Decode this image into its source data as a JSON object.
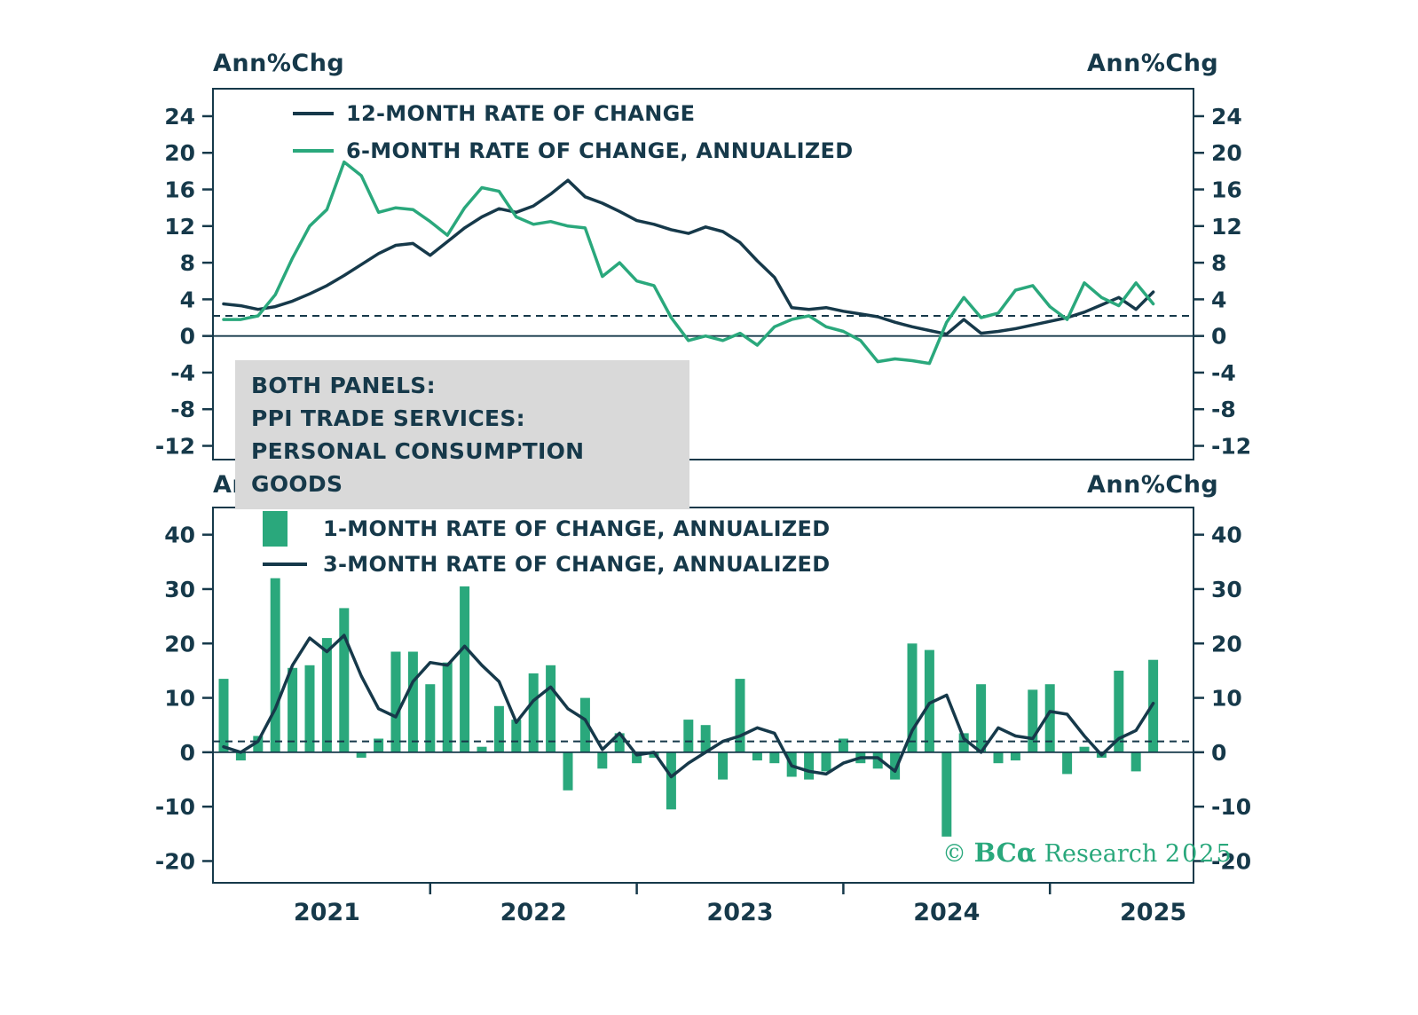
{
  "colors": {
    "navy": "#16394a",
    "green": "#2aa87c",
    "note_box_bg": "#d9d9d9",
    "background": "#ffffff"
  },
  "top_panel": {
    "axis_title_left": "Ann%Chg",
    "axis_title_right": "Ann%Chg",
    "legend": [
      {
        "label": "12-MONTH RATE OF CHANGE",
        "swatch": "navy"
      },
      {
        "label": "6-MONTH RATE OF CHANGE, ANNUALIZED",
        "swatch": "green"
      }
    ],
    "note_lines": [
      "BOTH PANELS:",
      "PPI TRADE SERVICES:",
      "PERSONAL CONSUMPTION GOODS"
    ]
  },
  "bottom_panel": {
    "axis_title_left": "Ann%Chg",
    "axis_title_right": "Ann%Chg",
    "legend": [
      {
        "label": "1-MONTH RATE OF CHANGE, ANNUALIZED",
        "swatch": "green"
      },
      {
        "label": "3-MONTH RATE OF CHANGE, ANNUALIZED",
        "swatch": "navy"
      }
    ]
  },
  "watermark": {
    "prefix": "©",
    "brand": "BCα",
    "name": "Research",
    "year": "2025"
  },
  "chart_data": [
    {
      "type": "line",
      "panel": "top",
      "title": "PPI Trade Services: Personal Consumption Goods",
      "ylabel_left": "Ann%Chg",
      "ylabel_right": "Ann%Chg",
      "ylim": [
        -13.5,
        27
      ],
      "yticks": [
        -12,
        -8,
        -4,
        0,
        4,
        8,
        12,
        16,
        20,
        24
      ],
      "reference_dashed_y": 2.2,
      "zero_line": true,
      "grid": false,
      "x_start": "2020-07",
      "freq": "monthly",
      "series": [
        {
          "name": "12-MONTH RATE OF CHANGE",
          "style": "line",
          "color": "#16394a",
          "values": [
            3.5,
            3.3,
            2.9,
            3.2,
            3.8,
            4.6,
            5.5,
            6.6,
            7.8,
            9.0,
            9.9,
            10.1,
            8.8,
            10.3,
            11.8,
            13.0,
            13.9,
            13.5,
            14.2,
            15.5,
            17.0,
            15.2,
            14.5,
            13.6,
            12.6,
            12.2,
            11.6,
            11.2,
            11.9,
            11.4,
            10.2,
            8.2,
            6.4,
            3.1,
            2.9,
            3.1,
            2.7,
            2.4,
            2.1,
            1.5,
            1.0,
            0.6,
            0.2,
            1.8,
            0.3,
            0.5,
            0.8,
            1.2,
            1.6,
            2.0,
            2.6,
            3.4,
            4.2,
            2.9,
            4.8
          ]
        },
        {
          "name": "6-MONTH RATE OF CHANGE, ANNUALIZED",
          "style": "line",
          "color": "#2aa87c",
          "values": [
            1.8,
            1.8,
            2.2,
            4.5,
            8.5,
            12.0,
            13.8,
            19.0,
            17.5,
            13.5,
            14.0,
            13.8,
            12.5,
            11.0,
            14.0,
            16.2,
            15.8,
            13.0,
            12.2,
            12.5,
            12.0,
            11.8,
            6.5,
            8.0,
            6.0,
            5.5,
            2.0,
            -0.5,
            0.0,
            -0.5,
            0.3,
            -1.0,
            1.0,
            1.8,
            2.2,
            1.0,
            0.5,
            -0.5,
            -2.8,
            -2.5,
            -2.7,
            -3.0,
            1.5,
            4.2,
            2.0,
            2.5,
            5.0,
            5.5,
            3.2,
            1.8,
            5.8,
            4.2,
            3.3,
            5.8,
            3.5
          ]
        }
      ]
    },
    {
      "type": "bar",
      "panel": "bottom",
      "title": "PPI Trade Services: Personal Consumption Goods",
      "ylabel_left": "Ann%Chg",
      "ylabel_right": "Ann%Chg",
      "ylim": [
        -24,
        45
      ],
      "yticks": [
        -20,
        -10,
        0,
        10,
        20,
        30,
        40
      ],
      "reference_dashed_y": 2.0,
      "zero_line": true,
      "grid": false,
      "x_start": "2020-07",
      "freq": "monthly",
      "series": [
        {
          "name": "1-MONTH RATE OF CHANGE, ANNUALIZED",
          "style": "bar",
          "color": "#2aa87c",
          "values": [
            13.5,
            -1.5,
            3.0,
            32.0,
            15.5,
            16.0,
            21.0,
            26.5,
            -1.0,
            2.5,
            18.5,
            18.5,
            12.5,
            16.5,
            30.5,
            1.0,
            8.5,
            6.0,
            14.5,
            16.0,
            -7.0,
            10.0,
            -3.0,
            3.5,
            -2.0,
            -1.0,
            -10.5,
            6.0,
            5.0,
            -5.0,
            13.5,
            -1.5,
            -2.0,
            -4.5,
            -5.0,
            -3.5,
            2.5,
            -2.0,
            -3.0,
            -5.0,
            20.0,
            18.8,
            -15.5,
            3.5,
            12.5,
            -2.0,
            -1.5,
            11.5,
            12.5,
            -4.0,
            1.0,
            -1.0,
            15.0,
            -3.5,
            17.0
          ]
        },
        {
          "name": "3-MONTH RATE OF CHANGE, ANNUALIZED",
          "style": "line",
          "color": "#16394a",
          "values": [
            1.0,
            0.0,
            2.0,
            8.0,
            16.0,
            21.0,
            18.5,
            21.5,
            14.0,
            8.0,
            6.5,
            13.0,
            16.5,
            16.0,
            19.5,
            16.0,
            13.0,
            5.5,
            9.5,
            12.0,
            8.0,
            6.0,
            0.5,
            3.5,
            -0.5,
            0.0,
            -4.5,
            -2.0,
            0.0,
            2.0,
            3.0,
            4.5,
            3.5,
            -2.5,
            -3.5,
            -4.0,
            -2.0,
            -1.0,
            -1.0,
            -3.5,
            4.0,
            9.0,
            10.5,
            2.5,
            0.0,
            4.5,
            3.0,
            2.5,
            7.5,
            7.0,
            3.0,
            -0.5,
            2.5,
            4.0,
            9.0
          ]
        }
      ],
      "x_year_labels": [
        {
          "label": "2021",
          "month_index": 6
        },
        {
          "label": "2022",
          "month_index": 18
        },
        {
          "label": "2023",
          "month_index": 30
        },
        {
          "label": "2024",
          "month_index": 42
        },
        {
          "label": "2025",
          "month_index": 54
        }
      ],
      "x_minor_tick_month_indices": [
        12,
        24,
        36,
        48
      ]
    }
  ]
}
